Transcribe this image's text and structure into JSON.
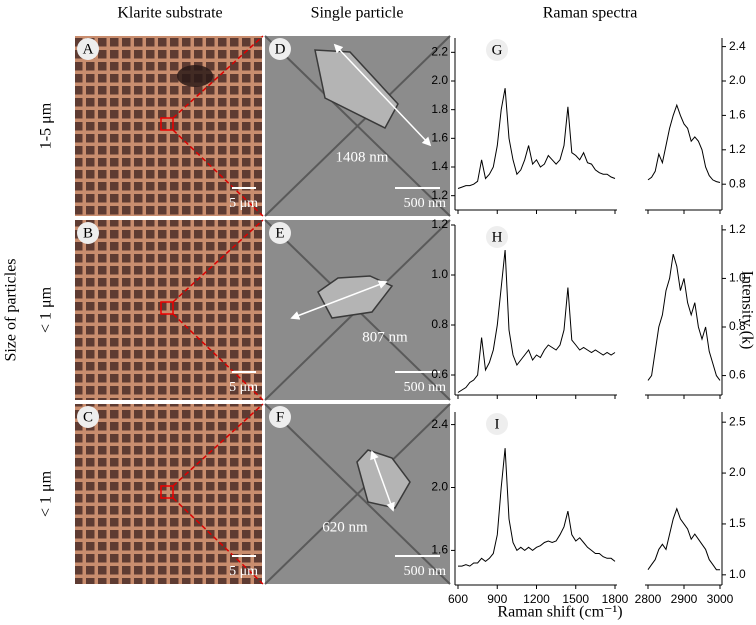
{
  "column_headers": [
    "Klarite substrate",
    "Single particle",
    "Raman spectra"
  ],
  "side_label": "Size of particles",
  "row_labels": [
    "1-5 μm",
    "< 1 μm",
    "< 1 μm"
  ],
  "image_panels": [
    {
      "label": "A",
      "scale_bar": "5 μm"
    },
    {
      "label": "B",
      "scale_bar": "5 μm"
    },
    {
      "label": "C",
      "scale_bar": "5 μm"
    }
  ],
  "sem_panels": [
    {
      "label": "D",
      "size": "1408 nm",
      "scale_bar": "500 nm"
    },
    {
      "label": "E",
      "size": "807 nm",
      "scale_bar": "500 nm"
    },
    {
      "label": "F",
      "size": "620 nm",
      "scale_bar": "500 nm"
    }
  ],
  "chart_data": {
    "type": "line",
    "x_label": "Raman shift (cm⁻¹)",
    "y2_label": "Intensity (k)",
    "xlim": [
      600,
      1800
    ],
    "xticks": [
      600,
      900,
      1200,
      1500,
      1800
    ],
    "x2lim": [
      2800,
      3000
    ],
    "x2ticks": [
      2800,
      2900,
      3000
    ],
    "color": "#000000",
    "panels": [
      {
        "label": "G",
        "ylim": [
          1.1,
          2.3
        ],
        "yticks": [
          1.2,
          1.4,
          1.6,
          1.8,
          {
            "value": 2,
            "label": "2.0"
          },
          2.2
        ],
        "y2lim": [
          0.5,
          2.5
        ],
        "y2ticks": [
          0.8,
          1.2,
          1.6,
          {
            "value": 2,
            "label": "2.0"
          },
          2.4
        ],
        "series": [
          {
            "x": [
              600,
              630,
              660,
              690,
              720,
              750,
              780,
              810,
              840,
              870,
              900,
              930,
              960,
              990,
              1020,
              1050,
              1080,
              1110,
              1140,
              1170,
              1200,
              1230,
              1260,
              1290,
              1320,
              1350,
              1380,
              1410,
              1440,
              1470,
              1500,
              1530,
              1560,
              1590,
              1620,
              1650,
              1680,
              1710,
              1740,
              1770,
              1800
            ],
            "values": [
              1.25,
              1.26,
              1.27,
              1.27,
              1.28,
              1.3,
              1.45,
              1.32,
              1.35,
              1.4,
              1.55,
              1.8,
              1.95,
              1.6,
              1.45,
              1.35,
              1.38,
              1.45,
              1.55,
              1.42,
              1.45,
              1.4,
              1.42,
              1.48,
              1.45,
              1.42,
              1.45,
              1.55,
              1.82,
              1.5,
              1.48,
              1.45,
              1.5,
              1.43,
              1.42,
              1.38,
              1.36,
              1.35,
              1.35,
              1.33,
              1.32
            ]
          },
          {
            "axis": "y2",
            "x": [
              2800,
              2810,
              2820,
              2830,
              2840,
              2850,
              2860,
              2870,
              2880,
              2890,
              2900,
              2910,
              2920,
              2930,
              2940,
              2950,
              2960,
              2970,
              2980,
              2990,
              3000
            ],
            "values": [
              0.85,
              0.88,
              0.95,
              1.15,
              1.05,
              1.25,
              1.45,
              1.6,
              1.72,
              1.6,
              1.5,
              1.45,
              1.3,
              1.35,
              1.3,
              1.2,
              1.0,
              0.9,
              0.85,
              0.83,
              0.82
            ]
          }
        ]
      },
      {
        "label": "H",
        "ylim": [
          0.52,
          1.2
        ],
        "yticks": [
          0.6,
          0.8,
          {
            "value": 1,
            "label": "1.0"
          },
          1.2
        ],
        "y2lim": [
          0.52,
          1.22
        ],
        "y2ticks": [
          0.6,
          0.8,
          {
            "value": 1,
            "label": "1.0"
          },
          1.2
        ],
        "series": [
          {
            "x": [
              600,
              630,
              660,
              690,
              720,
              750,
              780,
              810,
              840,
              870,
              900,
              930,
              960,
              990,
              1020,
              1050,
              1080,
              1110,
              1140,
              1170,
              1200,
              1230,
              1260,
              1290,
              1320,
              1350,
              1380,
              1410,
              1440,
              1470,
              1500,
              1530,
              1560,
              1590,
              1620,
              1650,
              1680,
              1710,
              1740,
              1770,
              1800
            ],
            "values": [
              0.53,
              0.54,
              0.55,
              0.57,
              0.58,
              0.6,
              0.75,
              0.62,
              0.65,
              0.7,
              0.8,
              0.95,
              1.1,
              0.78,
              0.68,
              0.64,
              0.66,
              0.68,
              0.7,
              0.66,
              0.68,
              0.67,
              0.7,
              0.72,
              0.71,
              0.7,
              0.72,
              0.78,
              0.95,
              0.74,
              0.72,
              0.7,
              0.71,
              0.7,
              0.69,
              0.7,
              0.69,
              0.68,
              0.69,
              0.68,
              0.69
            ]
          },
          {
            "axis": "y2",
            "x": [
              2800,
              2810,
              2820,
              2830,
              2840,
              2850,
              2860,
              2870,
              2880,
              2890,
              2900,
              2910,
              2920,
              2930,
              2940,
              2950,
              2960,
              2970,
              2980,
              2990,
              3000
            ],
            "values": [
              0.58,
              0.6,
              0.7,
              0.8,
              0.85,
              0.95,
              1.0,
              1.1,
              1.05,
              0.95,
              1.0,
              0.9,
              0.85,
              0.9,
              0.8,
              0.75,
              0.8,
              0.7,
              0.65,
              0.6,
              0.58
            ]
          }
        ]
      },
      {
        "label": "I",
        "ylim": [
          1.38,
          2.48
        ],
        "yticks": [
          1.6,
          {
            "value": 2,
            "label": "2.0"
          },
          2.4
        ],
        "y2lim": [
          0.9,
          2.6
        ],
        "y2ticks": [
          {
            "value": 1,
            "label": "1.0"
          },
          1.5,
          {
            "value": 2,
            "label": "2.0"
          },
          2.5
        ],
        "series": [
          {
            "x": [
              600,
              630,
              660,
              690,
              720,
              750,
              780,
              810,
              840,
              870,
              900,
              930,
              960,
              990,
              1020,
              1050,
              1080,
              1110,
              1140,
              1170,
              1200,
              1230,
              1260,
              1290,
              1320,
              1350,
              1380,
              1410,
              1440,
              1470,
              1500,
              1530,
              1560,
              1590,
              1620,
              1650,
              1680,
              1710,
              1740,
              1770,
              1800
            ],
            "values": [
              1.5,
              1.5,
              1.51,
              1.5,
              1.52,
              1.52,
              1.55,
              1.53,
              1.55,
              1.58,
              1.7,
              2.0,
              2.25,
              1.8,
              1.65,
              1.6,
              1.62,
              1.6,
              1.62,
              1.6,
              1.62,
              1.63,
              1.65,
              1.66,
              1.65,
              1.66,
              1.7,
              1.75,
              1.85,
              1.7,
              1.66,
              1.68,
              1.65,
              1.62,
              1.6,
              1.58,
              1.58,
              1.56,
              1.55,
              1.55,
              1.53
            ]
          },
          {
            "axis": "y2",
            "x": [
              2800,
              2810,
              2820,
              2830,
              2840,
              2850,
              2860,
              2870,
              2880,
              2890,
              2900,
              2910,
              2920,
              2930,
              2940,
              2950,
              2960,
              2970,
              2980,
              2990,
              3000
            ],
            "values": [
              1.05,
              1.1,
              1.15,
              1.25,
              1.3,
              1.25,
              1.4,
              1.55,
              1.65,
              1.55,
              1.5,
              1.45,
              1.35,
              1.4,
              1.35,
              1.3,
              1.25,
              1.15,
              1.1,
              1.05,
              1.05
            ]
          }
        ]
      }
    ]
  }
}
